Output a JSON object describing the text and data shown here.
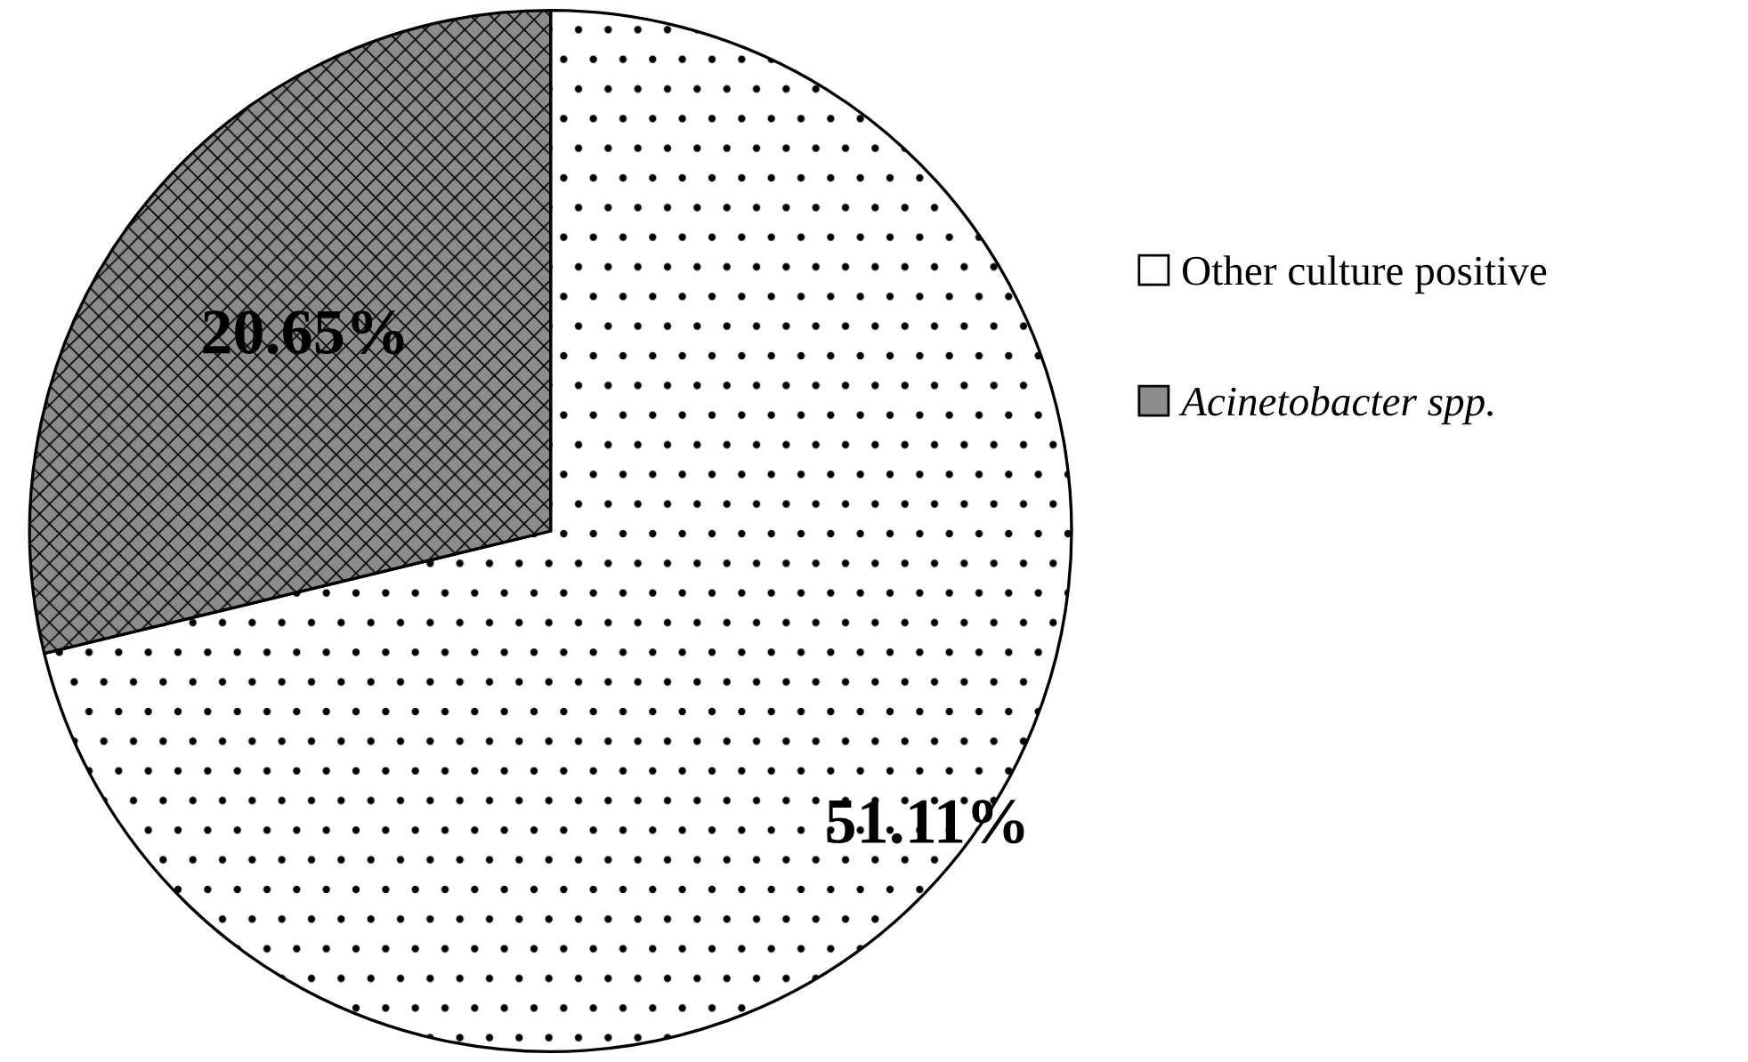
{
  "chart_data": {
    "type": "pie",
    "categories": [
      "Other culture positive",
      "Acinetobacter spp."
    ],
    "values": [
      51.11,
      20.65
    ],
    "colors": [
      "#ffffff",
      "#8c8c8c"
    ],
    "value_labels": [
      "51.11%",
      "20.65%"
    ],
    "legend": "right"
  }
}
